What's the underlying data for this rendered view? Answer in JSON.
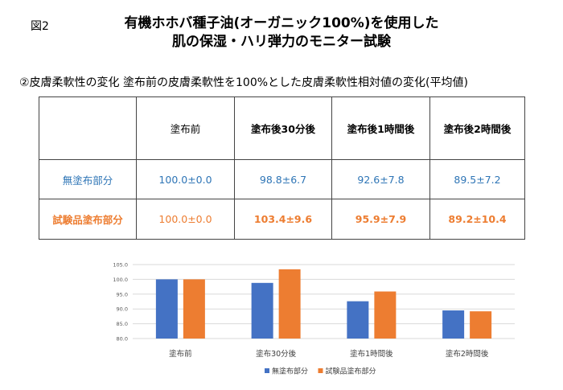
{
  "figure_label": "図2",
  "title_lines": [
    "有機ホホバ種子油(オーガニック100%)を使用した",
    "肌の保湿・ハリ弾力のモニター試験"
  ],
  "subtitle": "②皮膚柔軟性の変化  塗布前の皮膚柔軟性を100%とした皮膚柔軟性相対値の変化(平均値)",
  "table": {
    "headers": [
      "",
      "塗布前",
      "塗布後30分後",
      "塗布後1時間後",
      "塗布後2時間後"
    ],
    "rows": [
      {
        "label": "無塗布部分",
        "cells": [
          "100.0±0.0",
          "98.8±6.7",
          "92.6±7.8",
          "89.5±7.2"
        ]
      },
      {
        "label": "試験品塗布部分",
        "cells": [
          "100.0±0.0",
          "103.4±9.6",
          "95.9±7.9",
          "89.2±10.4"
        ]
      }
    ]
  },
  "chart_data": {
    "type": "bar",
    "categories": [
      "塗布前",
      "塗布30分後",
      "塗布1時間後",
      "塗布2時間後"
    ],
    "series": [
      {
        "name": "無塗布部分",
        "values": [
          100.0,
          98.8,
          92.6,
          89.5
        ],
        "color": "#4472c4"
      },
      {
        "name": "試験品塗布部分",
        "values": [
          100.0,
          103.4,
          95.9,
          89.2
        ],
        "color": "#ed7d31"
      }
    ],
    "ylim": [
      80,
      105
    ],
    "yticks": [
      "80.0",
      "85.0",
      "90.0",
      "95.0",
      "100.0",
      "105.0"
    ],
    "grid": true,
    "legend": "bottom"
  }
}
